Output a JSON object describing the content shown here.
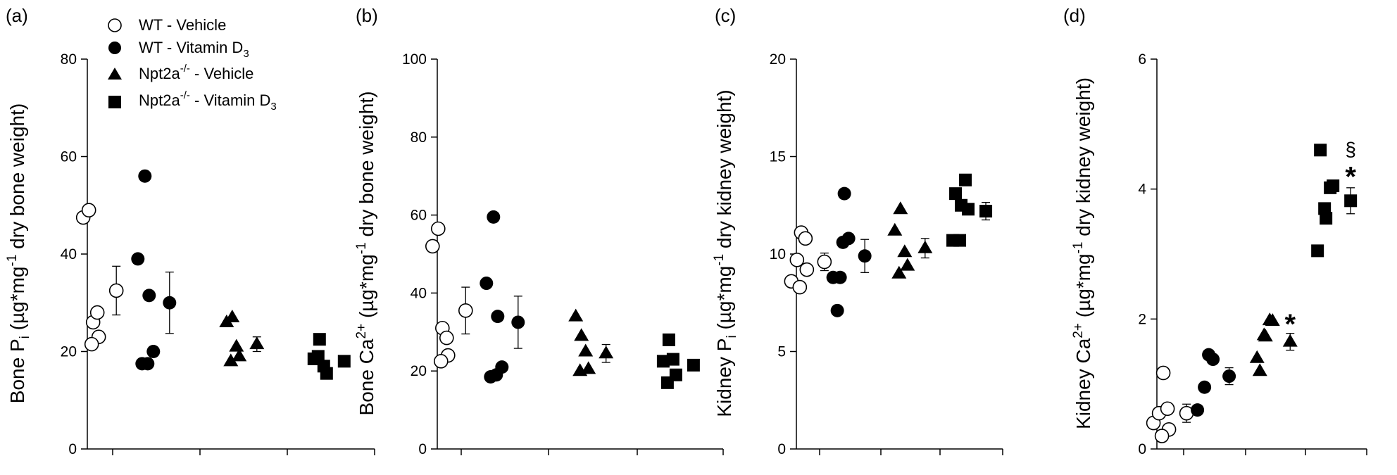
{
  "legend": [
    {
      "label": "WT - Vehicle",
      "marker": "circle-open"
    },
    {
      "label": "WT - Vitamin D",
      "sub": "3",
      "marker": "circle-filled"
    },
    {
      "label": "Npt2a",
      "sup": "-/-",
      "rest": " - Vehicle",
      "marker": "triangle-filled"
    },
    {
      "label": "Npt2a",
      "sup": "-/-",
      "rest": " - Vitamin D",
      "sub": "3",
      "marker": "square-filled"
    }
  ],
  "chart_data": [
    {
      "type": "scatter",
      "panel": "(a)",
      "ylabel": {
        "pre": "Bone P",
        "sub": "i",
        "mid": " (µg*mg",
        "sup": "-1",
        "post": " dry bone weight)"
      },
      "ylim": [
        0,
        80
      ],
      "yticks": [
        0,
        20,
        40,
        60,
        80
      ],
      "groups": [
        {
          "name": "WT - Vehicle",
          "points": [
            47.5,
            49,
            26,
            28,
            23,
            21.5
          ],
          "mean": 32.5,
          "err": 5
        },
        {
          "name": "WT - Vitamin D3",
          "points": [
            39,
            56,
            31.5,
            20,
            17.5,
            17.5
          ],
          "mean": 30,
          "err": 6.3
        },
        {
          "name": "Npt2a-/- - Vehicle",
          "points": [
            26,
            27,
            21,
            19,
            18
          ],
          "mean": 21.5,
          "err": 1.5
        },
        {
          "name": "Npt2a-/- - Vitamin D3",
          "points": [
            18.5,
            22.5,
            17,
            15.5,
            19
          ],
          "mean": 18,
          "err": 0.6
        }
      ],
      "annotations": []
    },
    {
      "type": "scatter",
      "panel": "(b)",
      "ylabel": {
        "pre": "Bone Ca",
        "sup": "2+",
        "mid": " (µg*mg",
        "sup2": "-1",
        "post": " dry bone weight)"
      },
      "ylim": [
        0,
        100
      ],
      "yticks": [
        0,
        20,
        40,
        60,
        80,
        100
      ],
      "groups": [
        {
          "name": "WT - Vehicle",
          "points": [
            52,
            56.5,
            31,
            28.5,
            24,
            22.5
          ],
          "mean": 35.5,
          "err": 6
        },
        {
          "name": "WT - Vitamin D3",
          "points": [
            42.5,
            59.5,
            34,
            21,
            19,
            18.5
          ],
          "mean": 32.5,
          "err": 6.7
        },
        {
          "name": "Npt2a-/- - Vehicle",
          "points": [
            34,
            29,
            25,
            20.5,
            20
          ],
          "mean": 24.5,
          "err": 2.3
        },
        {
          "name": "Npt2a-/- - Vitamin D3",
          "points": [
            22.5,
            28,
            23,
            19,
            17
          ],
          "mean": 21.5,
          "err": 1.1
        }
      ],
      "annotations": []
    },
    {
      "type": "scatter",
      "panel": "(c)",
      "ylabel": {
        "pre": "Kidney P",
        "sub": "i",
        "mid": " (µg*mg",
        "sup": "-1",
        "post": " dry kidney weight)"
      },
      "ylim": [
        0,
        20
      ],
      "yticks": [
        0,
        5,
        10,
        15,
        20
      ],
      "groups": [
        {
          "name": "WT - Vehicle",
          "points": [
            8.6,
            9.7,
            11.1,
            10.8,
            9.2,
            8.3
          ],
          "mean": 9.6,
          "err": 0.45
        },
        {
          "name": "WT - Vitamin D3",
          "points": [
            8.8,
            8.8,
            13.1,
            10.8,
            10.6,
            7.1
          ],
          "mean": 9.9,
          "err": 0.85
        },
        {
          "name": "Npt2a-/- - Vehicle",
          "points": [
            11.2,
            12.3,
            10.1,
            9.4,
            9
          ],
          "mean": 10.3,
          "err": 0.5
        },
        {
          "name": "Npt2a-/- - Vitamin D3",
          "points": [
            13.1,
            12.5,
            13.8,
            12.3,
            10.7,
            10.7
          ],
          "mean": 12.2,
          "err": 0.45
        }
      ],
      "annotations": []
    },
    {
      "type": "scatter",
      "panel": "(d)",
      "ylabel": {
        "pre": "Kidney Ca",
        "sup": "2+",
        "mid": " (µg*mg",
        "sup2": "-1",
        "post": " dry kidney weight)"
      },
      "ylim": [
        0,
        6
      ],
      "yticks": [
        0,
        2,
        4,
        6
      ],
      "groups": [
        {
          "name": "WT - Vehicle",
          "points": [
            0.4,
            0.55,
            1.17,
            0.62,
            0.3,
            0.2
          ],
          "mean": 0.55,
          "err": 0.14
        },
        {
          "name": "WT - Vitamin D3",
          "points": [
            0.6,
            0.95,
            1.45,
            1.38
          ],
          "mean": 1.12,
          "err": 0.13
        },
        {
          "name": "Npt2a-/- - Vehicle",
          "points": [
            1.2,
            1.73,
            1.98,
            1.97,
            1.75,
            1.4
          ],
          "mean": 1.65,
          "err": 0.13
        },
        {
          "name": "Npt2a-/- - Vitamin D3",
          "points": [
            4.6,
            3.55,
            4.02,
            4.05,
            3.7,
            3.05
          ],
          "mean": 3.82,
          "err": 0.2
        }
      ],
      "annotations": [
        {
          "text": "*",
          "group": 2,
          "y": 1.95
        },
        {
          "text": "*",
          "group": 3,
          "y": 4.22
        },
        {
          "text": "§",
          "group": 3,
          "y": 4.6
        }
      ]
    }
  ]
}
